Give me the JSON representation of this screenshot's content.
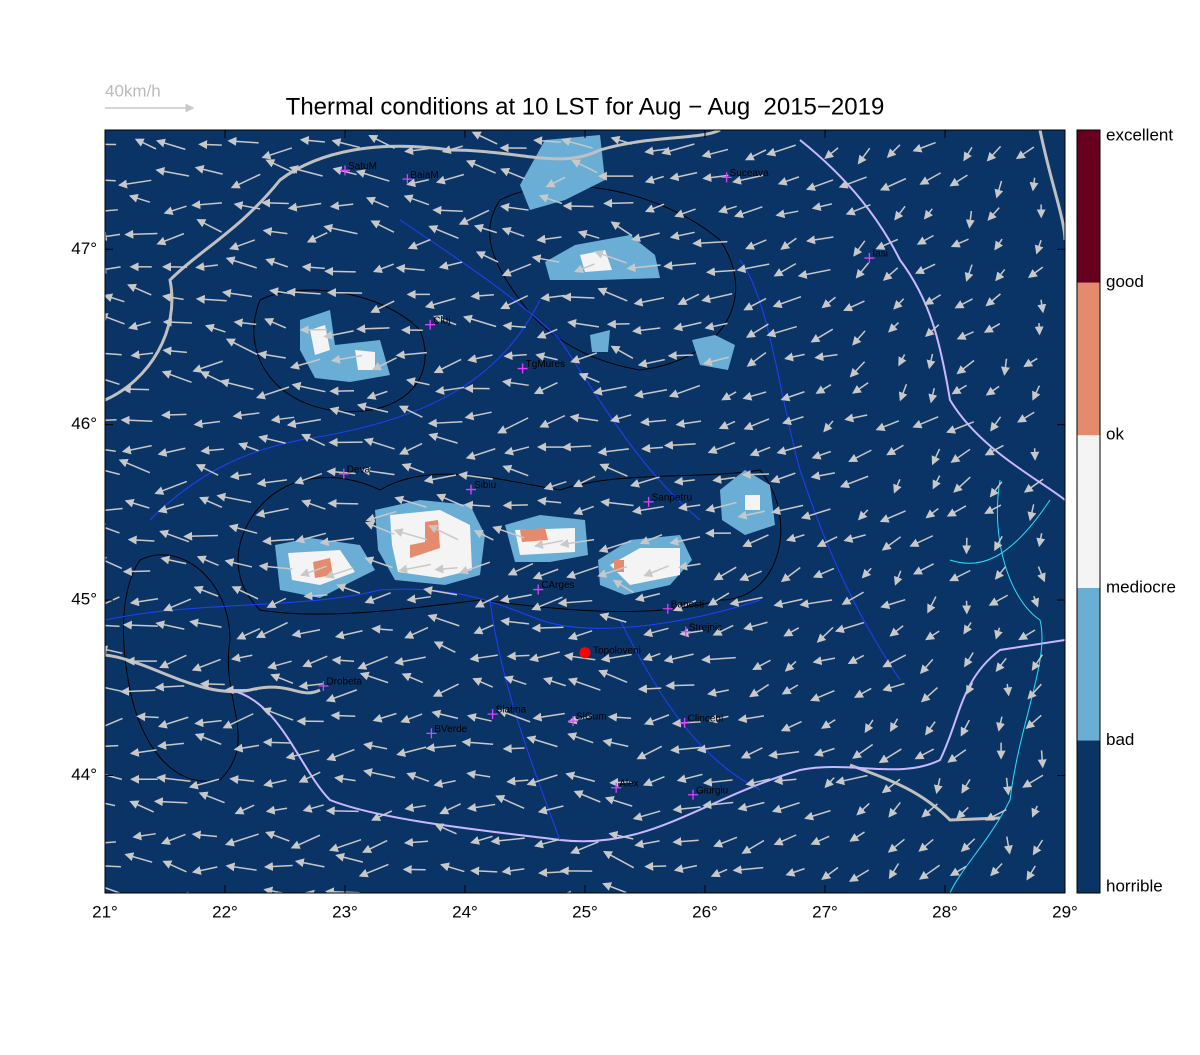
{
  "title": "Thermal conditions at 10 LST for Aug − Aug  2015−2019",
  "wind_scale": {
    "label": "40km/h"
  },
  "map": {
    "xlim": [
      21,
      29
    ],
    "ylim": [
      43.33,
      47.68
    ],
    "xticks": [
      {
        "value": 21,
        "label": "21°"
      },
      {
        "value": 22,
        "label": "22°"
      },
      {
        "value": 23,
        "label": "23°"
      },
      {
        "value": 24,
        "label": "24°"
      },
      {
        "value": 25,
        "label": "25°"
      },
      {
        "value": 26,
        "label": "26°"
      },
      {
        "value": 27,
        "label": "27°"
      },
      {
        "value": 28,
        "label": "28°"
      },
      {
        "value": 29,
        "label": "29°"
      }
    ],
    "yticks": [
      {
        "value": 44,
        "label": "44°"
      },
      {
        "value": 45,
        "label": "45°"
      },
      {
        "value": 46,
        "label": "46°"
      },
      {
        "value": 47,
        "label": "47°"
      }
    ],
    "cities": [
      {
        "name": "SatuM",
        "lon": 23.0,
        "lat": 47.45
      },
      {
        "name": "BaiaM",
        "lon": 23.52,
        "lat": 47.4
      },
      {
        "name": "Suceava",
        "lon": 26.18,
        "lat": 47.41
      },
      {
        "name": "Iasi",
        "lon": 27.37,
        "lat": 46.95
      },
      {
        "name": "Cluj",
        "lon": 23.71,
        "lat": 46.57
      },
      {
        "name": "TgMures",
        "lon": 24.48,
        "lat": 46.32
      },
      {
        "name": "Deva",
        "lon": 22.99,
        "lat": 45.72
      },
      {
        "name": "Sibiu",
        "lon": 24.05,
        "lat": 45.63
      },
      {
        "name": "Sanpetru",
        "lon": 25.53,
        "lat": 45.56
      },
      {
        "name": "CArges",
        "lon": 24.61,
        "lat": 45.06
      },
      {
        "name": "Banesti",
        "lon": 25.69,
        "lat": 44.95
      },
      {
        "name": "Strejnic",
        "lon": 25.84,
        "lat": 44.82
      },
      {
        "name": "Drobeta",
        "lon": 22.82,
        "lat": 44.51
      },
      {
        "name": "Slatina",
        "lon": 24.23,
        "lat": 44.35
      },
      {
        "name": "SlGum",
        "lon": 24.9,
        "lat": 44.31
      },
      {
        "name": "BVerde",
        "lon": 23.72,
        "lat": 44.24
      },
      {
        "name": "Clinceni",
        "lon": 25.83,
        "lat": 44.3
      },
      {
        "name": "Alex",
        "lon": 25.26,
        "lat": 43.93
      },
      {
        "name": "Giurgiu",
        "lon": 25.9,
        "lat": 43.89
      }
    ],
    "site": {
      "name": "Topoloveni",
      "lon": 25.0,
      "lat": 44.7,
      "color": "#ff0000"
    }
  },
  "colorbar": {
    "labels": [
      "horrible",
      "bad",
      "mediocre",
      "ok",
      "good",
      "excellent"
    ],
    "colors": [
      "#0b3466",
      "#6aaed6",
      "#f4f4f4",
      "#e48a6d",
      "#67001f"
    ]
  }
}
